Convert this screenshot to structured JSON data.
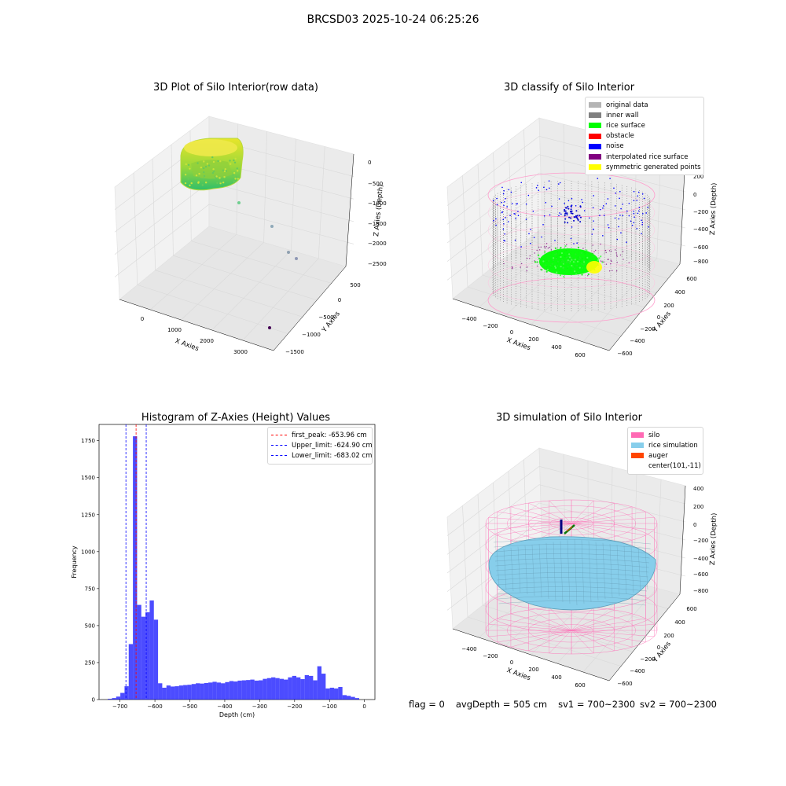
{
  "figure": {
    "suptitle": "BRCSD03 2025-10-24 06:25:26"
  },
  "panels": {
    "raw": {
      "title": "3D Plot of Silo Interior(row data)",
      "xlabel": "X Axies",
      "ylabel": "Y Axies",
      "zlabel": "Z Axies (Depth)",
      "xticks": [
        "0",
        "1000",
        "2000",
        "3000"
      ],
      "yticks": [
        "500",
        "0",
        "−500",
        "−1000",
        "−1500"
      ],
      "zticks": [
        "0",
        "−500",
        "−1000",
        "−1500",
        "−2000",
        "−2500"
      ]
    },
    "classify": {
      "title": "3D classify of Silo Interior",
      "xlabel": "X Axies",
      "ylabel": "Y Axies",
      "zlabel": "Z Axies (Depth)",
      "xticks": [
        "−400",
        "−200",
        "0",
        "200",
        "400",
        "600"
      ],
      "yticks": [
        "600",
        "400",
        "200",
        "0",
        "−200",
        "−400",
        "−600"
      ],
      "zticks": [
        "200",
        "0",
        "−200",
        "−400",
        "−600",
        "−800"
      ],
      "legend": [
        {
          "label": "original data",
          "color": "#b4b4b4"
        },
        {
          "label": "inner wall",
          "color": "#808080"
        },
        {
          "label": "rice surface",
          "color": "#00ff00"
        },
        {
          "label": "obstacle",
          "color": "#ff0000"
        },
        {
          "label": "noise",
          "color": "#0000ff"
        },
        {
          "label": "interpolated rice surface",
          "color": "#800080"
        },
        {
          "label": "symmetric generated points",
          "color": "#ffff00"
        }
      ]
    },
    "histogram": {
      "title": "Histogram of Z-Axies (Height) Values",
      "xlabel": "Depth (cm)",
      "ylabel": "Frequency",
      "xticks": [
        "−700",
        "−600",
        "−500",
        "−400",
        "−300",
        "−200",
        "−100",
        "0"
      ],
      "yticks": [
        "0",
        "250",
        "500",
        "750",
        "1000",
        "1250",
        "1500",
        "1750"
      ],
      "legend": [
        {
          "label": "first_peak: -653.96 cm",
          "color": "#ff0000"
        },
        {
          "label": "Upper_limit: -624.90 cm",
          "color": "#0000ff"
        },
        {
          "label": "Lower_limit: -683.02 cm",
          "color": "#0000ff"
        }
      ]
    },
    "simulation": {
      "title": "3D simulation of Silo Interior",
      "xlabel": "X Axies",
      "ylabel": "Y Axies",
      "zlabel": "Z Axies (Depth)",
      "xticks": [
        "−400",
        "−200",
        "0",
        "200",
        "400",
        "600"
      ],
      "yticks": [
        "600",
        "400",
        "200",
        "0",
        "−200",
        "−400",
        "−600"
      ],
      "zticks": [
        "400",
        "200",
        "0",
        "−200",
        "−400",
        "−600",
        "−800"
      ],
      "legend": [
        {
          "label": "silo",
          "color": "#ff69b4"
        },
        {
          "label": "rice simulation",
          "color": "#87ceeb"
        },
        {
          "label": "auger",
          "color": "#ff4500"
        },
        {
          "label": "center(101,-11)",
          "color": ""
        }
      ]
    }
  },
  "status": {
    "flag": "flag = 0",
    "avg_depth": "avgDepth = 505 cm",
    "sv1": "sv1 = 700~2300",
    "sv2": "sv2 = 700~2300"
  },
  "chart_data": [
    {
      "type": "scatter",
      "title": "3D Plot of Silo Interior(row data)",
      "dimensions": 3,
      "xlim": [
        -500,
        3500
      ],
      "ylim": [
        -1700,
        700
      ],
      "zlim": [
        -2700,
        100
      ],
      "points_description_outliers": [
        {
          "x": 1100,
          "y": -300,
          "z": -1100
        },
        {
          "x": 1750,
          "y": -550,
          "z": -1550
        },
        {
          "x": 2300,
          "y": -800,
          "z": -2100
        },
        {
          "x": 2500,
          "y": -850,
          "z": -2300
        },
        {
          "x": 3100,
          "y": -1300,
          "z": -2600
        }
      ]
    },
    {
      "type": "scatter",
      "title": "3D classify of Silo Interior",
      "dimensions": 3,
      "xlim": [
        -500,
        700
      ],
      "ylim": [
        -650,
        650
      ],
      "zlim": [
        -900,
        300
      ],
      "series": [
        {
          "name": "original data"
        },
        {
          "name": "inner wall"
        },
        {
          "name": "rice surface"
        },
        {
          "name": "obstacle"
        },
        {
          "name": "noise"
        },
        {
          "name": "interpolated rice surface"
        },
        {
          "name": "symmetric generated points"
        }
      ]
    },
    {
      "type": "bar",
      "title": "Histogram of Z-Axies (Height) Values",
      "xlabel": "Depth (cm)",
      "ylabel": "Frequency",
      "xlim": [
        -760,
        30
      ],
      "ylim": [
        0,
        1860
      ],
      "bin_width": 12,
      "bin_starts": [
        -735,
        -723,
        -711,
        -699,
        -687,
        -675,
        -663,
        -651,
        -639,
        -627,
        -615,
        -603,
        -591,
        -579,
        -567,
        -555,
        -543,
        -531,
        -519,
        -507,
        -495,
        -483,
        -471,
        -459,
        -447,
        -435,
        -423,
        -411,
        -399,
        -387,
        -375,
        -363,
        -351,
        -339,
        -327,
        -315,
        -303,
        -291,
        -279,
        -267,
        -255,
        -243,
        -231,
        -219,
        -207,
        -195,
        -183,
        -171,
        -159,
        -147,
        -135,
        -123,
        -111,
        -99,
        -87,
        -75,
        -63,
        -51,
        -39,
        -27,
        -15,
        -3
      ],
      "values": [
        5,
        10,
        20,
        45,
        90,
        375,
        1780,
        640,
        560,
        590,
        670,
        540,
        110,
        80,
        95,
        88,
        90,
        95,
        98,
        100,
        105,
        110,
        108,
        112,
        115,
        120,
        115,
        110,
        118,
        125,
        122,
        128,
        130,
        132,
        135,
        128,
        130,
        140,
        145,
        150,
        145,
        140,
        135,
        150,
        160,
        150,
        138,
        165,
        160,
        130,
        225,
        175,
        75,
        80,
        75,
        85,
        30,
        25,
        18,
        10,
        0,
        0
      ],
      "vlines": [
        {
          "name": "first_peak",
          "x": -653.96
        },
        {
          "name": "Upper_limit",
          "x": -624.9
        },
        {
          "name": "Lower_limit",
          "x": -683.02
        }
      ]
    },
    {
      "type": "surface",
      "title": "3D simulation of Silo Interior",
      "dimensions": 3,
      "xlim": [
        -500,
        700
      ],
      "ylim": [
        -650,
        650
      ],
      "zlim": [
        -900,
        450
      ],
      "series": [
        {
          "name": "silo"
        },
        {
          "name": "rice simulation"
        },
        {
          "name": "auger"
        },
        {
          "name": "center(101,-11)",
          "x": 101,
          "y": -11
        }
      ]
    }
  ]
}
